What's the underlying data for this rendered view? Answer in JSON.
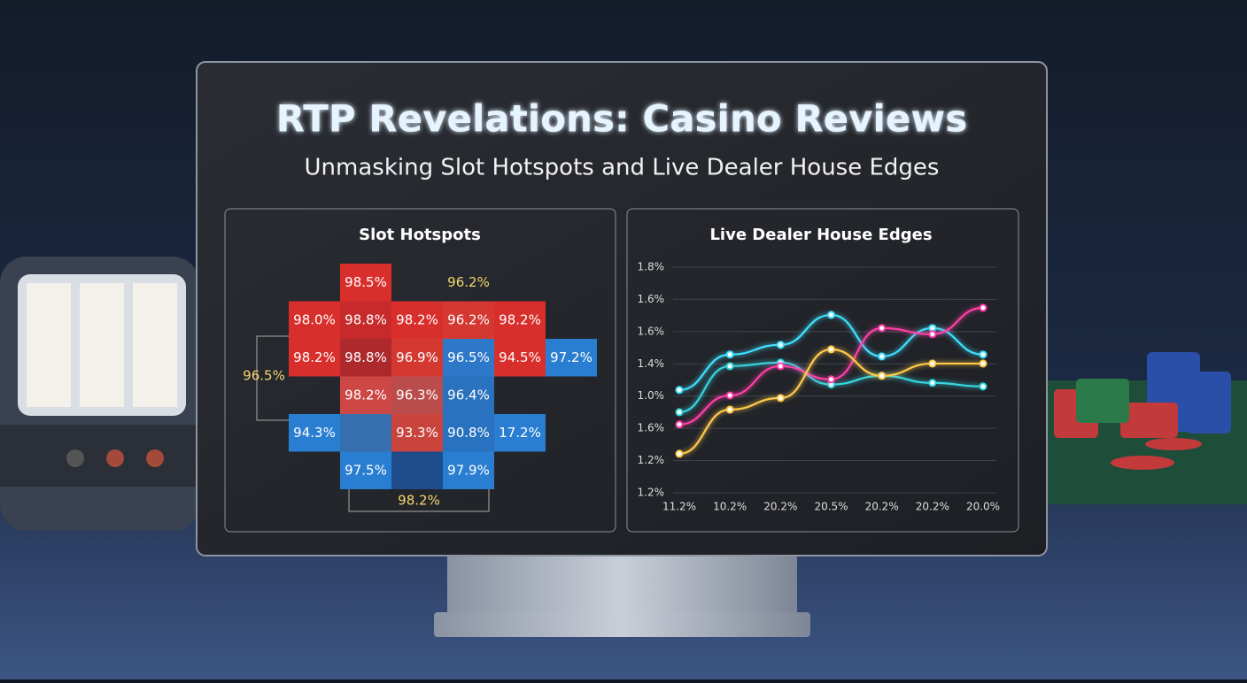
{
  "page": {
    "title": "RTP Revelations: Casino Reviews",
    "subtitle": "Unmasking Slot Hotspots and Live Dealer House Edges"
  },
  "chart_data": [
    {
      "type": "heatmap",
      "title": "Slot Hotspots",
      "values": [
        [
          null,
          98.5,
          null,
          96.2,
          null,
          null
        ],
        [
          98.0,
          98.8,
          98.2,
          96.2,
          98.2,
          null
        ],
        [
          98.2,
          98.8,
          96.9,
          96.5,
          94.5,
          97.2
        ],
        [
          null,
          98.2,
          96.3,
          96.4,
          null,
          null
        ],
        [
          94.3,
          null,
          93.3,
          90.8,
          17.2,
          null
        ],
        [
          null,
          97.5,
          null,
          97.9,
          null,
          null
        ]
      ],
      "value_labels": [
        [
          null,
          "98.5%",
          null,
          "96.2%",
          null,
          null
        ],
        [
          "98.0%",
          "98.8%",
          "98.2%",
          "96.2%",
          "98.2%",
          null
        ],
        [
          "98.2%",
          "98.8%",
          "96.9%",
          "96.5%",
          "94.5%",
          "97.2%"
        ],
        [
          null,
          "98.2%",
          "96.3%",
          "96.4%",
          null,
          null
        ],
        [
          "94.3%",
          null,
          "93.3%",
          "90.8%",
          "17.2%",
          null
        ],
        [
          null,
          "97.5%",
          null,
          "97.9%",
          null,
          null
        ]
      ],
      "colors": [
        [
          null,
          "#e8302c",
          null,
          null,
          null,
          null
        ],
        [
          "#e8302c",
          "#d42a2a",
          "#e8302c",
          "#e33a32",
          "#e8302c",
          null
        ],
        [
          "#e8302c",
          "#b9292b",
          "#e33a32",
          "#2f7fd6",
          "#e8302c",
          "#2a85e0"
        ],
        [
          null,
          "#dc4a48",
          "#c8504f",
          "#2a78cc",
          null,
          null
        ],
        [
          "#2a85e0",
          "#3a74b8",
          "#d8463e",
          "#2a78cc",
          "#2a85e0",
          null
        ],
        [
          null,
          "#2a85e0",
          "#1f4f96",
          "#2a85e0",
          null,
          null
        ]
      ],
      "annotations": [
        {
          "value": 96.5,
          "label": "96.5%"
        },
        {
          "value": 98.2,
          "label": "98.2%"
        }
      ]
    },
    {
      "type": "line",
      "title": "Live Dealer House Edges",
      "categories": [
        "11.2%",
        "10.2%",
        "20.2%",
        "20.5%",
        "20.2%",
        "20.2%",
        "20.0%"
      ],
      "ycategories": [
        "1.2%",
        "1.2%",
        "1.6%",
        "1.0%",
        "1.4%",
        "1.6%",
        "1.6%",
        "1.8%"
      ],
      "grid": true,
      "series": [
        {
          "color": "#3fe0ff",
          "values": [
            3.19,
            4.29,
            4.59,
            5.52,
            4.23,
            5.11,
            4.29
          ]
        },
        {
          "color": "#35d6e0",
          "values": [
            2.5,
            3.93,
            4.04,
            3.36,
            3.63,
            3.41,
            3.3
          ]
        },
        {
          "color": "#ff3fa8",
          "values": [
            2.12,
            3.02,
            3.93,
            3.52,
            5.11,
            4.92,
            5.74
          ]
        },
        {
          "color": "#ffc94a",
          "values": [
            1.21,
            2.58,
            2.94,
            4.45,
            3.63,
            4.01,
            4.01
          ]
        }
      ]
    }
  ]
}
